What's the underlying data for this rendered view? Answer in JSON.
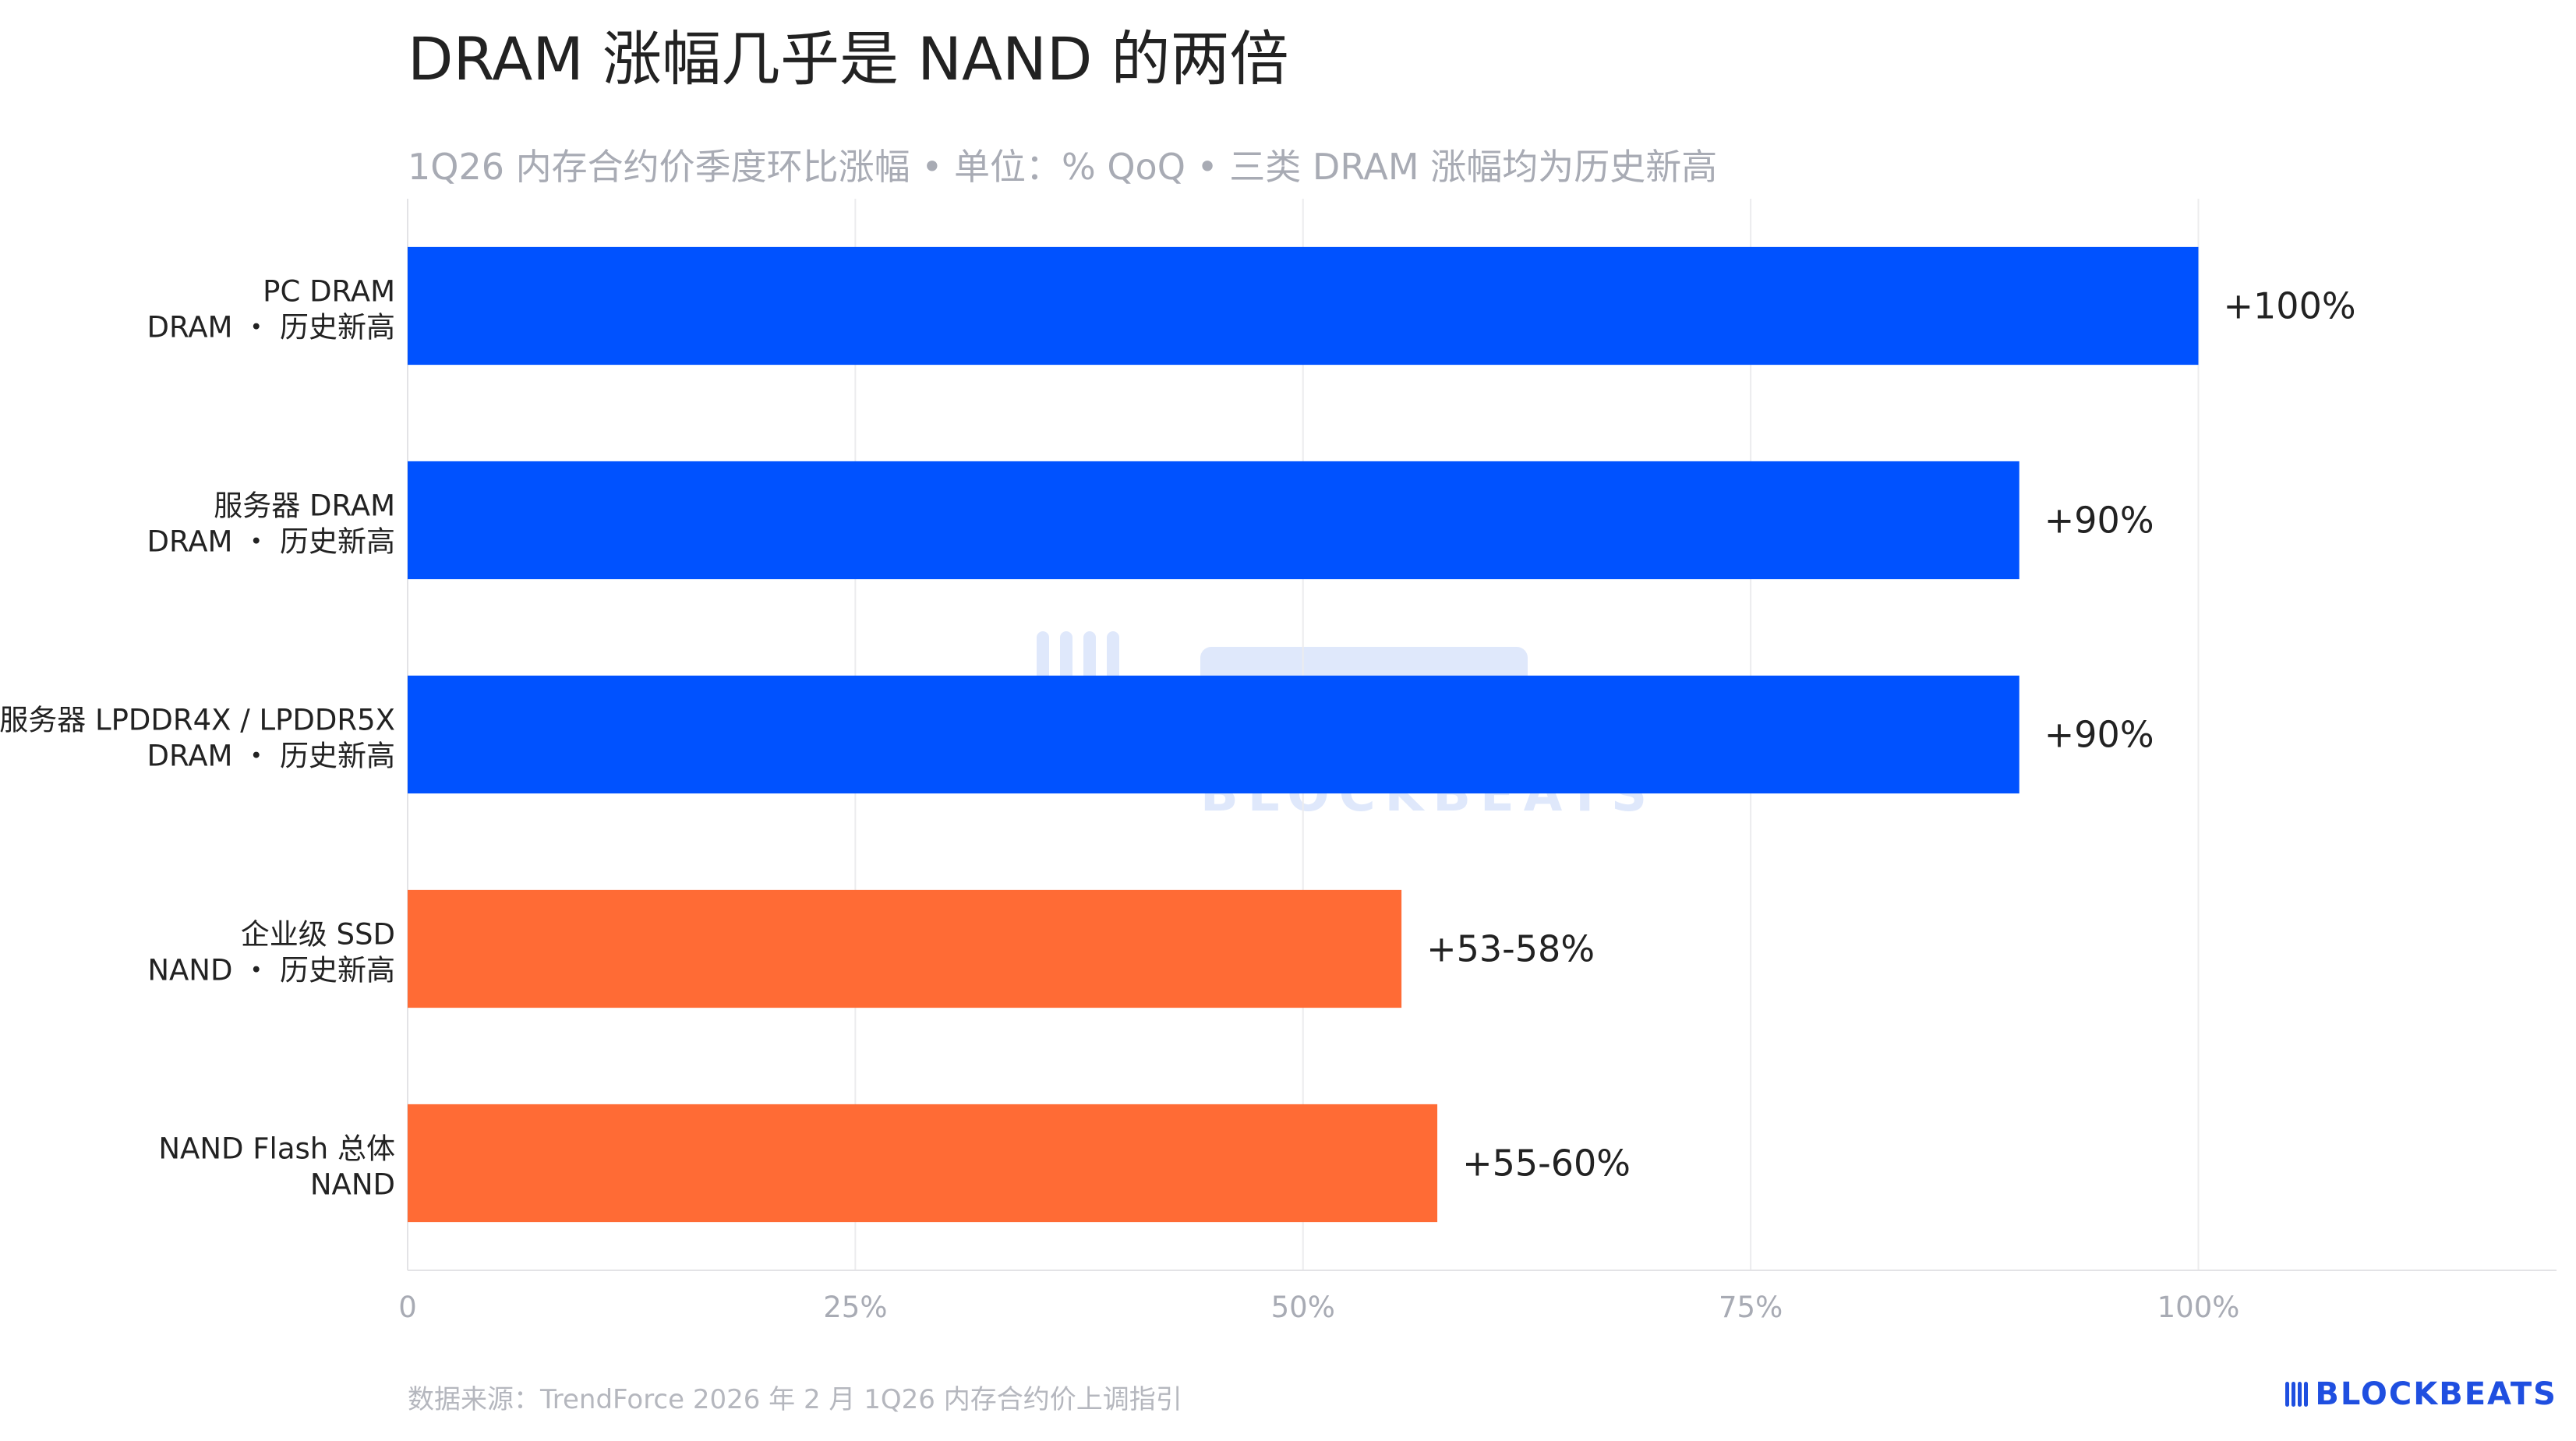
{
  "title": "DRAM 涨幅几乎是 NAND 的两倍",
  "subtitle": "1Q26 内存合约价季度环比涨幅 • 单位：% QoQ • 三类 DRAM 涨幅均为历史新高",
  "footer": {
    "source": "数据来源：TrendForce 2026 年 2 月 1Q26 内存合约价上调指引",
    "brand": "BLOCKBEATS"
  },
  "watermark": {
    "text": "BLOCKBEATS"
  },
  "colors": {
    "dram": "#0052ff",
    "nand": "#ff6b35",
    "grid": "#ececee",
    "axis": "#e3e3e6",
    "brand": "#1f4fe0"
  },
  "chart_data": {
    "type": "bar",
    "orientation": "horizontal",
    "xlim": [
      0,
      120
    ],
    "xticks": [
      {
        "value": 0,
        "label": "0"
      },
      {
        "value": 25,
        "label": "25%"
      },
      {
        "value": 50,
        "label": "50%"
      },
      {
        "value": 75,
        "label": "75%"
      },
      {
        "value": 100,
        "label": "100%"
      }
    ],
    "grid": true,
    "bars": [
      {
        "line1": "PC DRAM",
        "line2": "DRAM ・ 历史新高",
        "value": 100,
        "label": "+100%",
        "group": "dram"
      },
      {
        "line1": "服务器 DRAM",
        "line2": "DRAM ・ 历史新高",
        "value": 90,
        "label": "+90%",
        "group": "dram"
      },
      {
        "line1": "服务器 LPDDR4X / LPDDR5X",
        "line2": "DRAM ・ 历史新高",
        "value": 90,
        "label": "+90%",
        "group": "dram"
      },
      {
        "line1": "企业级 SSD",
        "line2": "NAND ・ 历史新高",
        "value": 55.5,
        "label": "+53-58%",
        "group": "nand"
      },
      {
        "line1": "NAND Flash 总体",
        "line2": "NAND",
        "value": 57.5,
        "label": "+55-60%",
        "group": "nand"
      }
    ]
  }
}
